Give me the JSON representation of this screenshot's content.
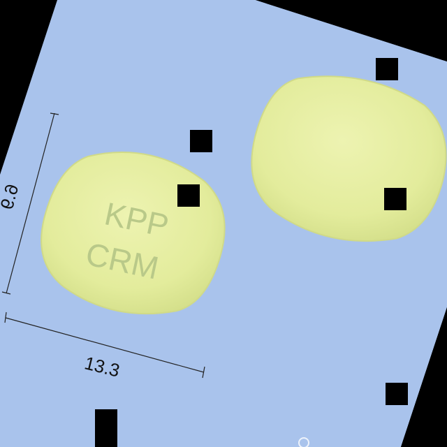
{
  "image": {
    "background_color": "#a9c3ec",
    "outer_color": "#000000",
    "pill_color": "#e6ee9f",
    "imprint_color": "#b9c989"
  },
  "pill_front": {
    "imprint_line1": "KPP",
    "imprint_line2": "CRM"
  },
  "dimensions": {
    "height_label": "6.9",
    "width_label": "13.3"
  }
}
